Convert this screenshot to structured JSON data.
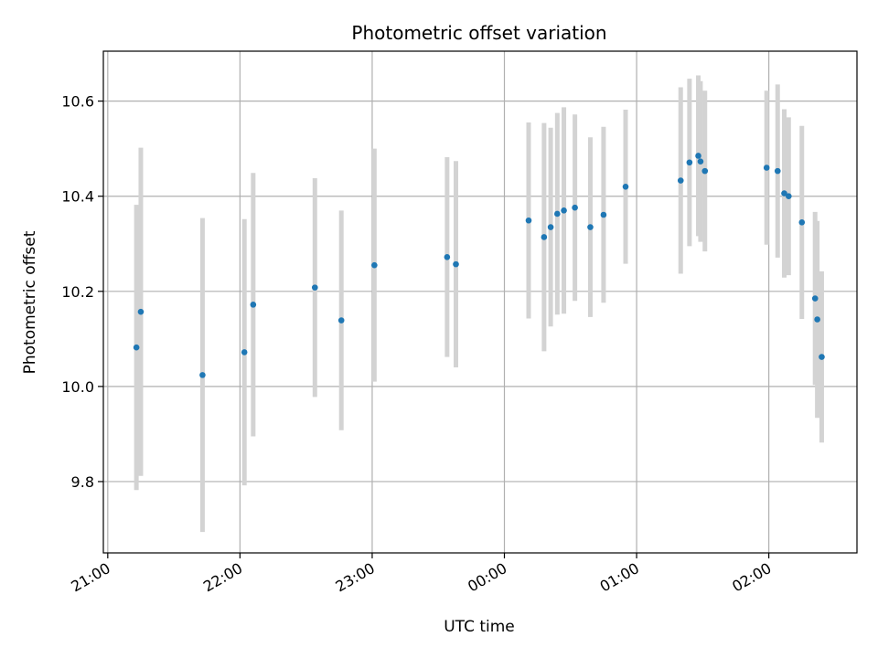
{
  "chart_data": {
    "type": "scatter",
    "title": "Photometric offset variation",
    "xlabel": "UTC time",
    "ylabel": "Photometric offset",
    "x_unit": "UTC time (HH:MM), observation night spanning midnight",
    "xlim": [
      "20:58",
      "02:40"
    ],
    "ylim": [
      9.65,
      10.705
    ],
    "grid": true,
    "legend": "none",
    "x_ticks": [
      {
        "time": "21:00",
        "label": "21:00"
      },
      {
        "time": "22:00",
        "label": "22:00"
      },
      {
        "time": "23:00",
        "label": "23:00"
      },
      {
        "time": "00:00",
        "label": "00:00"
      },
      {
        "time": "01:00",
        "label": "01:00"
      },
      {
        "time": "02:00",
        "label": "02:00"
      }
    ],
    "y_ticks": [
      {
        "value": 9.8,
        "label": "9.8"
      },
      {
        "value": 10.0,
        "label": "10.0"
      },
      {
        "value": 10.2,
        "label": "10.2"
      },
      {
        "value": 10.4,
        "label": "10.4"
      },
      {
        "value": 10.6,
        "label": "10.6"
      }
    ],
    "colors": {
      "points": "#1f77b4",
      "errorbars": "#d3d3d3",
      "grid": "#b0b0b0"
    },
    "points": [
      {
        "x": "21:13",
        "y": 10.082,
        "y_low": 9.782,
        "y_high": 10.382
      },
      {
        "x": "21:15",
        "y": 10.157,
        "y_low": 9.812,
        "y_high": 10.502
      },
      {
        "x": "21:43",
        "y": 10.024,
        "y_low": 9.694,
        "y_high": 10.354
      },
      {
        "x": "22:02",
        "y": 10.072,
        "y_low": 9.792,
        "y_high": 10.352
      },
      {
        "x": "22:06",
        "y": 10.172,
        "y_low": 9.895,
        "y_high": 10.449
      },
      {
        "x": "22:34",
        "y": 10.208,
        "y_low": 9.978,
        "y_high": 10.438
      },
      {
        "x": "22:46",
        "y": 10.139,
        "y_low": 9.908,
        "y_high": 10.37
      },
      {
        "x": "23:01",
        "y": 10.255,
        "y_low": 10.01,
        "y_high": 10.5
      },
      {
        "x": "23:34",
        "y": 10.272,
        "y_low": 10.062,
        "y_high": 10.482
      },
      {
        "x": "23:38",
        "y": 10.257,
        "y_low": 10.04,
        "y_high": 10.474
      },
      {
        "x": "00:11",
        "y": 10.349,
        "y_low": 10.143,
        "y_high": 10.555
      },
      {
        "x": "00:18",
        "y": 10.314,
        "y_low": 10.074,
        "y_high": 10.554
      },
      {
        "x": "00:21",
        "y": 10.335,
        "y_low": 10.126,
        "y_high": 10.544
      },
      {
        "x": "00:24",
        "y": 10.363,
        "y_low": 10.151,
        "y_high": 10.575
      },
      {
        "x": "00:27",
        "y": 10.37,
        "y_low": 10.153,
        "y_high": 10.587
      },
      {
        "x": "00:32",
        "y": 10.376,
        "y_low": 10.18,
        "y_high": 10.572
      },
      {
        "x": "00:39",
        "y": 10.335,
        "y_low": 10.146,
        "y_high": 10.524
      },
      {
        "x": "00:45",
        "y": 10.361,
        "y_low": 10.176,
        "y_high": 10.546
      },
      {
        "x": "00:55",
        "y": 10.42,
        "y_low": 10.258,
        "y_high": 10.582
      },
      {
        "x": "01:20",
        "y": 10.433,
        "y_low": 10.237,
        "y_high": 10.629
      },
      {
        "x": "01:24",
        "y": 10.471,
        "y_low": 10.295,
        "y_high": 10.647
      },
      {
        "x": "01:28",
        "y": 10.485,
        "y_low": 10.316,
        "y_high": 10.654
      },
      {
        "x": "01:29",
        "y": 10.473,
        "y_low": 10.304,
        "y_high": 10.642
      },
      {
        "x": "01:31",
        "y": 10.453,
        "y_low": 10.284,
        "y_high": 10.622
      },
      {
        "x": "01:59",
        "y": 10.46,
        "y_low": 10.298,
        "y_high": 10.622
      },
      {
        "x": "02:04",
        "y": 10.453,
        "y_low": 10.271,
        "y_high": 10.635
      },
      {
        "x": "02:07",
        "y": 10.406,
        "y_low": 10.229,
        "y_high": 10.583
      },
      {
        "x": "02:09",
        "y": 10.4,
        "y_low": 10.234,
        "y_high": 10.566
      },
      {
        "x": "02:15",
        "y": 10.345,
        "y_low": 10.142,
        "y_high": 10.548
      },
      {
        "x": "02:21",
        "y": 10.185,
        "y_low": 10.003,
        "y_high": 10.367
      },
      {
        "x": "02:22",
        "y": 10.141,
        "y_low": 9.934,
        "y_high": 10.348
      },
      {
        "x": "02:24",
        "y": 10.062,
        "y_low": 9.882,
        "y_high": 10.242
      }
    ]
  }
}
